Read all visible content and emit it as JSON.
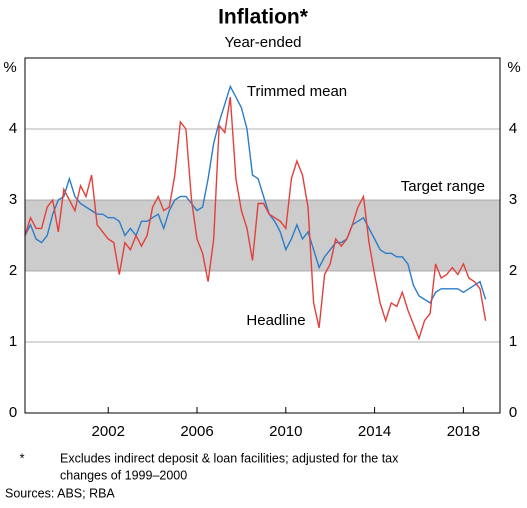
{
  "chart_data": {
    "type": "line",
    "title": "Inflation*",
    "subtitle": "Year-ended",
    "y_unit": "%",
    "footnote_marker": "*",
    "footnote": "Excludes indirect deposit & loan facilities; adjusted for the tax",
    "footnote_cont": "changes of 1999–2000",
    "sources": "Sources:   ABS; RBA",
    "target_range": {
      "label": "Target range",
      "values": [
        2,
        3
      ],
      "color": "#cccccc"
    },
    "xlim": [
      1998.25,
      2019.65
    ],
    "xticks": [
      2002,
      2006,
      2010,
      2014,
      2018
    ],
    "ylim": [
      0,
      5
    ],
    "yticks": [
      0,
      1,
      2,
      3,
      4
    ],
    "grid": true,
    "x": [
      1998.25,
      1998.5,
      1998.75,
      1999,
      1999.25,
      1999.5,
      1999.75,
      2000,
      2000.25,
      2000.5,
      2000.75,
      2001,
      2001.25,
      2001.5,
      2001.75,
      2002,
      2002.25,
      2002.5,
      2002.75,
      2003,
      2003.25,
      2003.5,
      2003.75,
      2004,
      2004.25,
      2004.5,
      2004.75,
      2005,
      2005.25,
      2005.5,
      2005.75,
      2006,
      2006.25,
      2006.5,
      2006.75,
      2007,
      2007.25,
      2007.5,
      2007.75,
      2008,
      2008.25,
      2008.5,
      2008.75,
      2009,
      2009.25,
      2009.5,
      2009.75,
      2010,
      2010.25,
      2010.5,
      2010.75,
      2011,
      2011.25,
      2011.5,
      2011.75,
      2012,
      2012.25,
      2012.5,
      2012.75,
      2013,
      2013.25,
      2013.5,
      2013.75,
      2014,
      2014.25,
      2014.5,
      2014.75,
      2015,
      2015.25,
      2015.5,
      2015.75,
      2016,
      2016.25,
      2016.5,
      2016.75,
      2017,
      2017.25,
      2017.5,
      2017.75,
      2018,
      2018.25,
      2018.5,
      2018.75,
      2019
    ],
    "series": [
      {
        "name": "Trimmed mean",
        "color": "#2b7cc9",
        "values": [
          2.5,
          2.65,
          2.45,
          2.4,
          2.5,
          2.8,
          3.0,
          3.05,
          3.3,
          3.05,
          2.95,
          2.9,
          2.85,
          2.8,
          2.8,
          2.75,
          2.75,
          2.7,
          2.5,
          2.6,
          2.5,
          2.7,
          2.7,
          2.75,
          2.8,
          2.6,
          2.85,
          3.0,
          3.05,
          3.05,
          2.95,
          2.85,
          2.9,
          3.3,
          3.8,
          4.1,
          4.35,
          4.6,
          4.45,
          4.3,
          4.0,
          3.35,
          3.3,
          3.05,
          2.8,
          2.7,
          2.55,
          2.3,
          2.45,
          2.65,
          2.45,
          2.55,
          2.3,
          2.05,
          2.2,
          2.3,
          2.4,
          2.4,
          2.45,
          2.65,
          2.7,
          2.75,
          2.6,
          2.45,
          2.3,
          2.25,
          2.25,
          2.2,
          2.2,
          2.1,
          1.8,
          1.65,
          1.6,
          1.55,
          1.7,
          1.75,
          1.75,
          1.75,
          1.75,
          1.7,
          1.75,
          1.8,
          1.85,
          1.6
        ]
      },
      {
        "name": "Headline",
        "color": "#e2403c",
        "values": [
          2.5,
          2.75,
          2.6,
          2.6,
          2.9,
          3.0,
          2.55,
          3.15,
          3.0,
          2.85,
          3.2,
          3.05,
          3.35,
          2.65,
          2.55,
          2.45,
          2.4,
          1.95,
          2.4,
          2.3,
          2.5,
          2.35,
          2.5,
          2.9,
          3.05,
          2.85,
          2.9,
          3.35,
          4.1,
          4.0,
          3.0,
          2.45,
          2.25,
          1.85,
          2.45,
          4.05,
          3.95,
          4.45,
          3.3,
          2.85,
          2.6,
          2.15,
          2.95,
          2.95,
          2.8,
          2.75,
          2.7,
          2.6,
          3.3,
          3.55,
          3.35,
          2.9,
          1.55,
          1.2,
          1.95,
          2.1,
          2.45,
          2.35,
          2.45,
          2.65,
          2.9,
          3.05,
          2.4,
          1.95,
          1.55,
          1.3,
          1.55,
          1.5,
          1.7,
          1.45,
          1.25,
          1.05,
          1.3,
          1.4,
          2.1,
          1.9,
          1.95,
          2.05,
          1.95,
          2.1,
          1.9,
          1.85,
          1.75,
          1.3
        ]
      }
    ]
  }
}
